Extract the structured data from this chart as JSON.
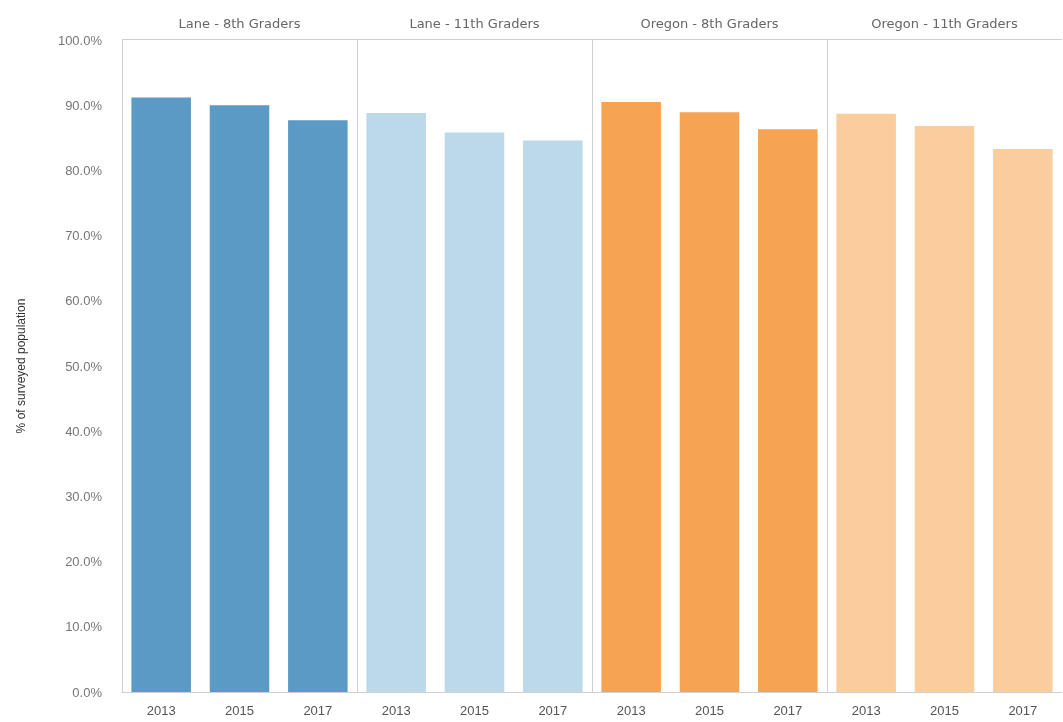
{
  "chart_data": [
    {
      "type": "bar",
      "title": "Lane - 8th Graders",
      "ylabel": "% of surveyed population",
      "categories": [
        "2013",
        "2015",
        "2017"
      ],
      "values": [
        91.2,
        90.0,
        87.7
      ],
      "color": "#5a9ac5",
      "ylim": [
        0,
        100
      ],
      "yticks": [
        {
          "value": 0,
          "label": "0.0%"
        },
        {
          "value": 10,
          "label": "10.0%"
        },
        {
          "value": 20,
          "label": "20.0%"
        },
        {
          "value": 30,
          "label": "30.0%"
        },
        {
          "value": 40,
          "label": "40.0%"
        },
        {
          "value": 50,
          "label": "50.0%"
        },
        {
          "value": 60,
          "label": "60.0%"
        },
        {
          "value": 70,
          "label": "70.0%"
        },
        {
          "value": 80,
          "label": "80.0%"
        },
        {
          "value": 90,
          "label": "90.0%"
        },
        {
          "value": 100,
          "label": "100.0%"
        }
      ]
    },
    {
      "type": "bar",
      "title": "Lane - 11th Graders",
      "categories": [
        "2013",
        "2015",
        "2017"
      ],
      "values": [
        88.8,
        85.8,
        84.6
      ],
      "color": "#bcd9ea",
      "ylim": [
        0,
        100
      ],
      "tick_labels": "x"
    },
    {
      "type": "bar",
      "title": "Oregon - 8th Graders",
      "categories": [
        "2013",
        "2015",
        "2017"
      ],
      "values": [
        90.5,
        88.9,
        86.3
      ],
      "color": "#f6a354",
      "ylim": [
        0,
        100
      ],
      "tick_labels": "x"
    },
    {
      "type": "bar",
      "title": "Oregon - 11th Graders",
      "categories": [
        "2013",
        "2015",
        "2017"
      ],
      "values": [
        88.7,
        86.8,
        83.3
      ],
      "color": "#fccd9c",
      "ylim": [
        0,
        100
      ],
      "tick_labels": "x"
    }
  ]
}
